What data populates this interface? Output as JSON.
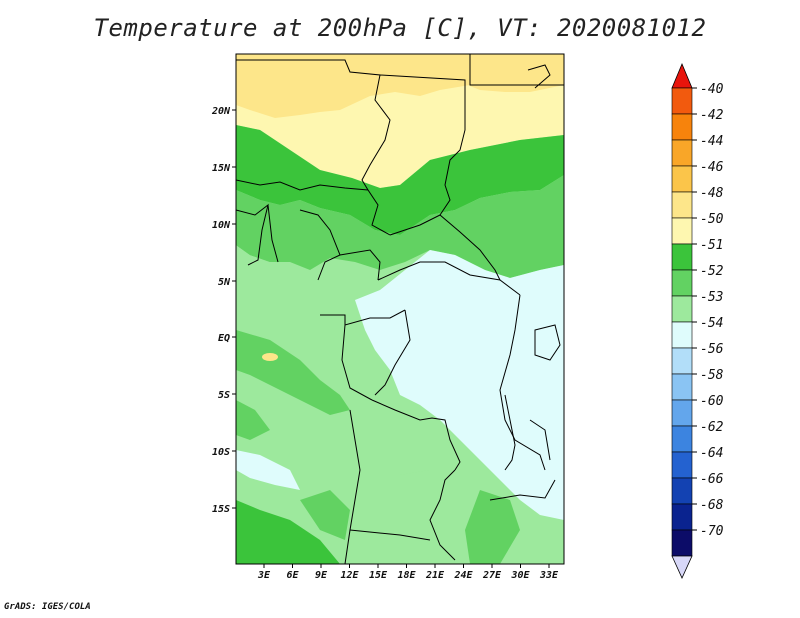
{
  "title": "Temperature at 200hPa [C], VT: 2020081012",
  "credit": "GrADS: IGES/COLA",
  "lat_labels": [
    "20N",
    "15N",
    "10N",
    "5N",
    "EQ",
    "5S",
    "10S",
    "15S"
  ],
  "lon_labels": [
    "3E",
    "6E",
    "9E",
    "12E",
    "15E",
    "18E",
    "21E",
    "24E",
    "27E",
    "30E",
    "33E"
  ],
  "colorbar": {
    "labels": [
      "-40",
      "-42",
      "-44",
      "-46",
      "-48",
      "-50",
      "-51",
      "-52",
      "-53",
      "-54",
      "-56",
      "-58",
      "-60",
      "-62",
      "-64",
      "-66",
      "-68",
      "-70"
    ],
    "colors": [
      "#e8301c",
      "#f25a0e",
      "#f7830c",
      "#f9a628",
      "#fbc54a",
      "#fde68a",
      "#fef7b0",
      "#3bc43b",
      "#62d262",
      "#9de99d",
      "#dffcfc",
      "#b2def9",
      "#8ac4f3",
      "#63a6ec",
      "#3c84e0",
      "#2462d0",
      "#1342b2",
      "#0a238f",
      "#0c0c68"
    ],
    "top_arrow_color": "#e8140c",
    "bottom_arrow_color": "#d8d8f8"
  }
}
